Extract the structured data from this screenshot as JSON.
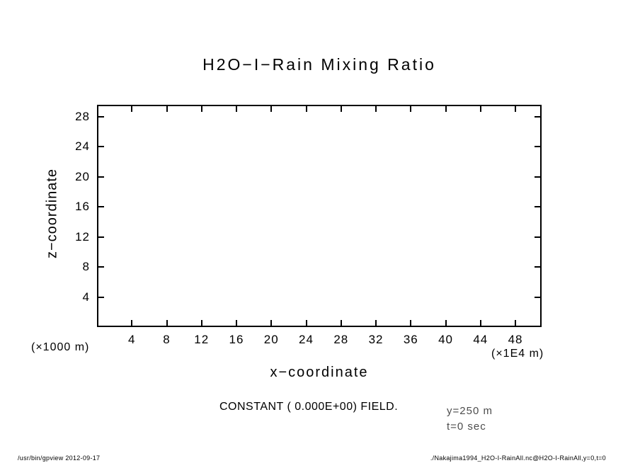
{
  "chart_data": {
    "type": "heatmap",
    "title": "H2O−I−Rain Mixing Ratio",
    "xlabel": "x−coordinate",
    "ylabel": "z−coordinate",
    "x_ticks": [
      4,
      8,
      12,
      16,
      20,
      24,
      28,
      32,
      36,
      40,
      44,
      48
    ],
    "y_ticks": [
      4,
      8,
      12,
      16,
      20,
      24,
      28
    ],
    "xlim": [
      0,
      51
    ],
    "ylim": [
      0,
      29.6
    ],
    "x_unit": "(×1E4 m)",
    "y_unit": "(×1000 m)",
    "grid": false,
    "legend": "none",
    "field": {
      "constant": true,
      "value": 0.0
    },
    "annotations": {
      "constant_field": "CONSTANT ( 0.000E+00) FIELD.",
      "y_slice": "y=250 m",
      "time": "t=0 sec"
    }
  },
  "colors": {
    "foreground": "#000000",
    "background": "#ffffff",
    "annotation_gray": "#4d4d4d"
  },
  "footer": {
    "left": "/usr/bin/gpview   2012-09-17",
    "right": "./Nakajima1994_H2O-I-RainAll.nc@H2O-I-RainAll,y=0,t=0"
  }
}
